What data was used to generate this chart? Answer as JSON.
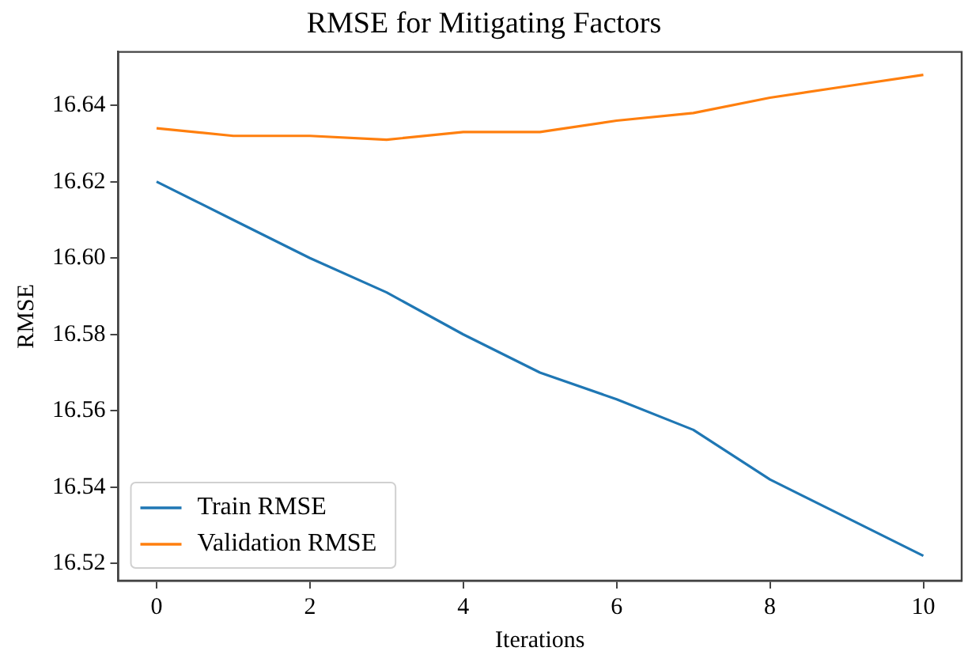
{
  "chart_data": {
    "type": "line",
    "title": "RMSE for Mitigating Factors",
    "xlabel": "Iterations",
    "ylabel": "RMSE",
    "x": [
      0,
      1,
      2,
      3,
      4,
      5,
      6,
      7,
      8,
      9,
      10
    ],
    "series": [
      {
        "name": "Train RMSE",
        "color": "#1f77b4",
        "values": [
          16.62,
          16.61,
          16.6,
          16.591,
          16.58,
          16.57,
          16.563,
          16.555,
          16.542,
          16.532,
          16.522
        ]
      },
      {
        "name": "Validation RMSE",
        "color": "#ff7f0e",
        "values": [
          16.634,
          16.632,
          16.632,
          16.631,
          16.633,
          16.633,
          16.636,
          16.638,
          16.642,
          16.645,
          16.648
        ]
      }
    ],
    "xlim": [
      -0.5,
      10.5
    ],
    "ylim": [
      16.5155,
      16.654
    ],
    "xticks": [
      0,
      2,
      4,
      6,
      8,
      10
    ],
    "yticks": [
      16.52,
      16.54,
      16.56,
      16.58,
      {
        "value": 16.6,
        "label": "16.60"
      },
      16.62,
      16.64
    ],
    "grid": false,
    "legend": "bottom left",
    "marker": "none",
    "line_style": "solid"
  }
}
